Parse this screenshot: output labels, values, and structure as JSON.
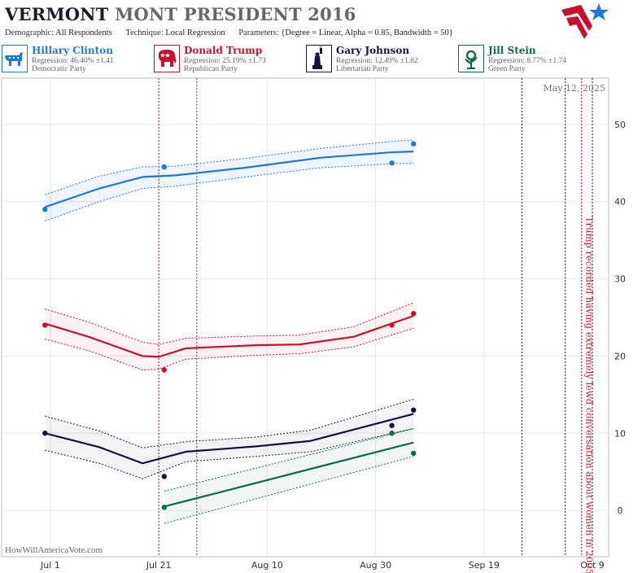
{
  "header": {
    "title_state": "VERMONT",
    "title_rest": "MONT PRESIDENT 2016",
    "demographic_label": "Demographic:",
    "demographic_value": "All Respondents",
    "technique_label": "Technique:",
    "technique_value": "Local Regression",
    "parameters_label": "Parameters:",
    "parameters_value": "{Degree = Linear, Alpha = 0.85, Bandwidth = 50}"
  },
  "logo": "stars-and-stripes-logo",
  "candidates": [
    {
      "name": "Hillary Clinton",
      "regression": "Regression: 46.40% ±1.41",
      "party": "Democratic Party",
      "color": "#1f77d6",
      "icon": "donkey-icon"
    },
    {
      "name": "Donald Trump",
      "regression": "Regression: 25.19% ±1.73",
      "party": "Republican Party",
      "color": "#c8102e",
      "icon": "elephant-icon"
    },
    {
      "name": "Gary Johnson",
      "regression": "Regression: 12.49% ±1.82",
      "party": "Libertarian Party",
      "color": "#14123e",
      "icon": "statue-of-liberty-icon"
    },
    {
      "name": "Jill Stein",
      "regression": "Regression: 8.77% ±1.74",
      "party": "Green Party",
      "color": "#0f6b45",
      "icon": "flower-icon"
    }
  ],
  "chart_data": {
    "type": "line",
    "date_label": "May 12, 2025",
    "watermark": "HowWillAmericaVote.com",
    "x_ticks": [
      "Jul 1",
      "Jul 21",
      "Aug 10",
      "Aug 30",
      "Sep 19",
      "Oct 9"
    ],
    "x_range": [
      "2016-06-22",
      "2016-10-12"
    ],
    "ylim": [
      -6,
      56
    ],
    "y_ticks": [
      0,
      10,
      20,
      30,
      40,
      50
    ],
    "grid": true,
    "annotation": {
      "text": "Trump recorded having extremely lewd conversation about women in 2005",
      "date": "2016-10-07"
    },
    "event_lines": [
      {
        "date": "2016-07-21",
        "color": "#c8102e"
      },
      {
        "date": "2016-07-28",
        "color": "#1f4e8c"
      },
      {
        "date": "2016-09-26",
        "color": "#14123e"
      },
      {
        "date": "2016-10-04",
        "color": "#14123e"
      },
      {
        "date": "2016-10-07",
        "color": "#c8102e"
      },
      {
        "date": "2016-10-09",
        "color": "#14123e"
      }
    ],
    "series": [
      {
        "name": "Hillary Clinton",
        "color": "#1f77d6",
        "fill": "rgba(31,119,214,0.07)",
        "x": [
          "2016-06-30",
          "2016-07-10",
          "2016-07-18",
          "2016-07-24",
          "2016-08-06",
          "2016-08-20",
          "2016-09-02",
          "2016-09-06"
        ],
        "y": [
          39.3,
          41.7,
          43.2,
          43.4,
          44.4,
          45.7,
          46.4,
          46.5
        ],
        "lower": [
          37.5,
          40.0,
          41.7,
          42.0,
          43.2,
          44.4,
          44.9,
          45.0
        ],
        "upper": [
          40.9,
          43.3,
          44.5,
          44.6,
          45.6,
          46.9,
          47.8,
          48.0
        ],
        "points": [
          {
            "x": "2016-06-30",
            "y": 39
          },
          {
            "x": "2016-07-22",
            "y": 44.5
          },
          {
            "x": "2016-09-02",
            "y": 45
          },
          {
            "x": "2016-09-06",
            "y": 47.5
          }
        ]
      },
      {
        "name": "Donald Trump",
        "color": "#c8102e",
        "fill": "rgba(200,16,46,0.06)",
        "x": [
          "2016-06-30",
          "2016-07-08",
          "2016-07-18",
          "2016-07-21",
          "2016-07-26",
          "2016-08-08",
          "2016-08-16",
          "2016-08-26",
          "2016-09-06"
        ],
        "y": [
          24.2,
          22.5,
          20.0,
          19.9,
          21.0,
          21.4,
          21.5,
          22.5,
          25.2
        ],
        "lower": [
          22.2,
          20.7,
          18.2,
          18.3,
          19.6,
          20.1,
          20.3,
          21.2,
          23.6
        ],
        "upper": [
          26.1,
          24.4,
          21.8,
          21.5,
          22.3,
          22.6,
          22.7,
          23.8,
          26.9
        ],
        "points": [
          {
            "x": "2016-06-30",
            "y": 24
          },
          {
            "x": "2016-07-22",
            "y": 18.2
          },
          {
            "x": "2016-09-02",
            "y": 24
          },
          {
            "x": "2016-09-06",
            "y": 25.5
          }
        ]
      },
      {
        "name": "Gary Johnson",
        "color": "#14123e",
        "fill": "rgba(20,18,62,0.05)",
        "x": [
          "2016-06-30",
          "2016-07-10",
          "2016-07-18",
          "2016-07-26",
          "2016-08-08",
          "2016-08-18",
          "2016-09-06"
        ],
        "y": [
          10.0,
          8.2,
          6.1,
          7.6,
          8.3,
          9.0,
          12.5
        ],
        "lower": [
          7.8,
          6.1,
          4.1,
          6.3,
          7.0,
          7.6,
          10.6
        ],
        "upper": [
          12.2,
          10.3,
          8.1,
          8.9,
          9.5,
          10.4,
          14.4
        ],
        "points": [
          {
            "x": "2016-06-30",
            "y": 10
          },
          {
            "x": "2016-07-22",
            "y": 4.4
          },
          {
            "x": "2016-09-02",
            "y": 11
          },
          {
            "x": "2016-09-06",
            "y": 13
          }
        ]
      },
      {
        "name": "Jill Stein",
        "color": "#0f6b45",
        "fill": "rgba(15,107,69,0.06)",
        "x": [
          "2016-07-22",
          "2016-09-06"
        ],
        "y": [
          0.5,
          8.8
        ],
        "lower": [
          -1.7,
          7.0
        ],
        "upper": [
          2.5,
          10.6
        ],
        "points": [
          {
            "x": "2016-07-22",
            "y": 0.4
          },
          {
            "x": "2016-09-02",
            "y": 10
          },
          {
            "x": "2016-09-06",
            "y": 7.4
          }
        ]
      }
    ]
  }
}
